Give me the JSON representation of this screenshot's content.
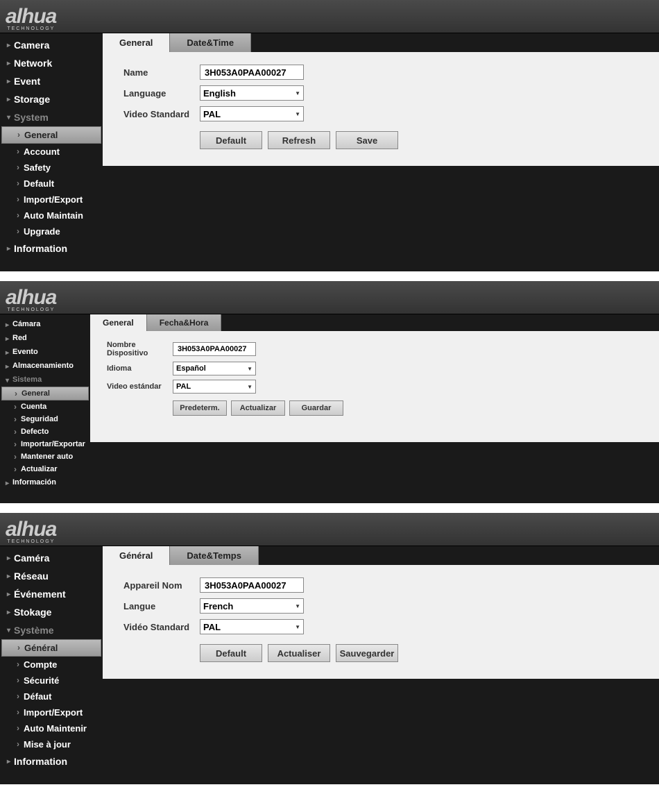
{
  "logo": {
    "brand": "alhua",
    "sub": "TECHNOLOGY"
  },
  "panels": [
    {
      "size": "large",
      "sidebar": {
        "items": [
          {
            "label": "Camera",
            "expanded": false
          },
          {
            "label": "Network",
            "expanded": false
          },
          {
            "label": "Event",
            "expanded": false
          },
          {
            "label": "Storage",
            "expanded": false
          },
          {
            "label": "System",
            "expanded": true,
            "children": [
              {
                "label": "General",
                "active": true
              },
              {
                "label": "Account",
                "active": false
              },
              {
                "label": "Safety",
                "active": false
              },
              {
                "label": "Default",
                "active": false
              },
              {
                "label": "Import/Export",
                "active": false
              },
              {
                "label": "Auto Maintain",
                "active": false
              },
              {
                "label": "Upgrade",
                "active": false
              }
            ]
          },
          {
            "label": "Information",
            "expanded": false
          }
        ]
      },
      "tabs": [
        {
          "label": "General",
          "active": true
        },
        {
          "label": "Date&Time",
          "active": false
        }
      ],
      "form": {
        "name_label": "Name",
        "name_value": "3H053A0PAA00027",
        "language_label": "Language",
        "language_value": "English",
        "video_label": "Video Standard",
        "video_value": "PAL",
        "buttons": {
          "default": "Default",
          "refresh": "Refresh",
          "save": "Save"
        }
      }
    },
    {
      "size": "small",
      "sidebar": {
        "items": [
          {
            "label": "Cámara",
            "expanded": false
          },
          {
            "label": "Red",
            "expanded": false
          },
          {
            "label": "Evento",
            "expanded": false
          },
          {
            "label": "Almacenamiento",
            "expanded": false
          },
          {
            "label": "Sistema",
            "expanded": true,
            "children": [
              {
                "label": "General",
                "active": true
              },
              {
                "label": "Cuenta",
                "active": false
              },
              {
                "label": "Seguridad",
                "active": false
              },
              {
                "label": "Defecto",
                "active": false
              },
              {
                "label": "Importar/Exportar",
                "active": false
              },
              {
                "label": "Mantener auto",
                "active": false
              },
              {
                "label": "Actualizar",
                "active": false
              }
            ]
          },
          {
            "label": "Información",
            "expanded": false
          }
        ]
      },
      "tabs": [
        {
          "label": "General",
          "active": true
        },
        {
          "label": "Fecha&Hora",
          "active": false
        }
      ],
      "form": {
        "name_label": "Nombre Dispositivo",
        "name_value": "3H053A0PAA00027",
        "language_label": "Idioma",
        "language_value": "Español",
        "video_label": "Video estándar",
        "video_value": "PAL",
        "buttons": {
          "default": "Predeterm.",
          "refresh": "Actualizar",
          "save": "Guardar"
        }
      }
    },
    {
      "size": "large",
      "sidebar": {
        "items": [
          {
            "label": "Caméra",
            "expanded": false
          },
          {
            "label": "Réseau",
            "expanded": false
          },
          {
            "label": "Événement",
            "expanded": false
          },
          {
            "label": "Stokage",
            "expanded": false
          },
          {
            "label": "Système",
            "expanded": true,
            "children": [
              {
                "label": "Général",
                "active": true
              },
              {
                "label": "Compte",
                "active": false
              },
              {
                "label": "Sécurité",
                "active": false
              },
              {
                "label": "Défaut",
                "active": false
              },
              {
                "label": "Import/Export",
                "active": false
              },
              {
                "label": "Auto Maintenir",
                "active": false
              },
              {
                "label": "Mise à jour",
                "active": false
              }
            ]
          },
          {
            "label": "Information",
            "expanded": false
          }
        ]
      },
      "tabs": [
        {
          "label": "Général",
          "active": true
        },
        {
          "label": "Date&Temps",
          "active": false
        }
      ],
      "form": {
        "name_label": "Appareil Nom",
        "name_value": "3H053A0PAA00027",
        "language_label": "Langue",
        "language_value": "French",
        "video_label": "Vidéo Standard",
        "video_value": "PAL",
        "buttons": {
          "default": "Default",
          "refresh": "Actualiser",
          "save": "Sauvegarder"
        }
      }
    }
  ],
  "colors": {
    "bg_dark": "#1a1a1a",
    "header_grad_top": "#4a4a4a",
    "header_grad_bot": "#333333",
    "tab_active": "#f0f0f0",
    "tab_inactive_top": "#b8b8b8",
    "tab_inactive_bot": "#999999",
    "btn_top": "#e8e8e8",
    "btn_bot": "#cccccc",
    "border": "#888888",
    "text_light": "#ffffff",
    "text_dim": "#888888"
  }
}
